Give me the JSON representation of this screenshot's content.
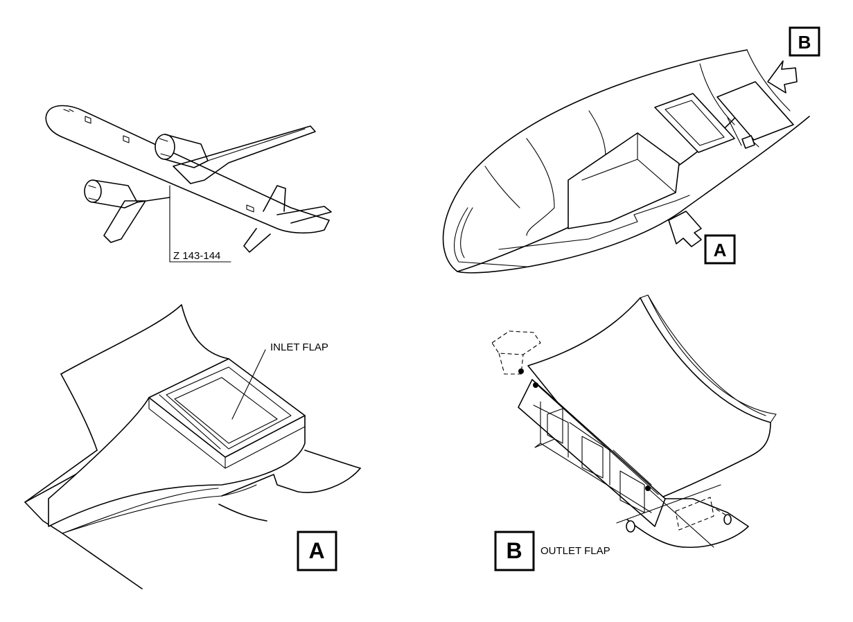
{
  "labels": {
    "zone": "Z 143-144",
    "inlet_flap": "INLET FLAP",
    "outlet_flap": "OUTLET FLAP",
    "view_a_callout": "A",
    "view_b_callout": "B",
    "view_a_title": "A",
    "view_b_title": "B"
  }
}
